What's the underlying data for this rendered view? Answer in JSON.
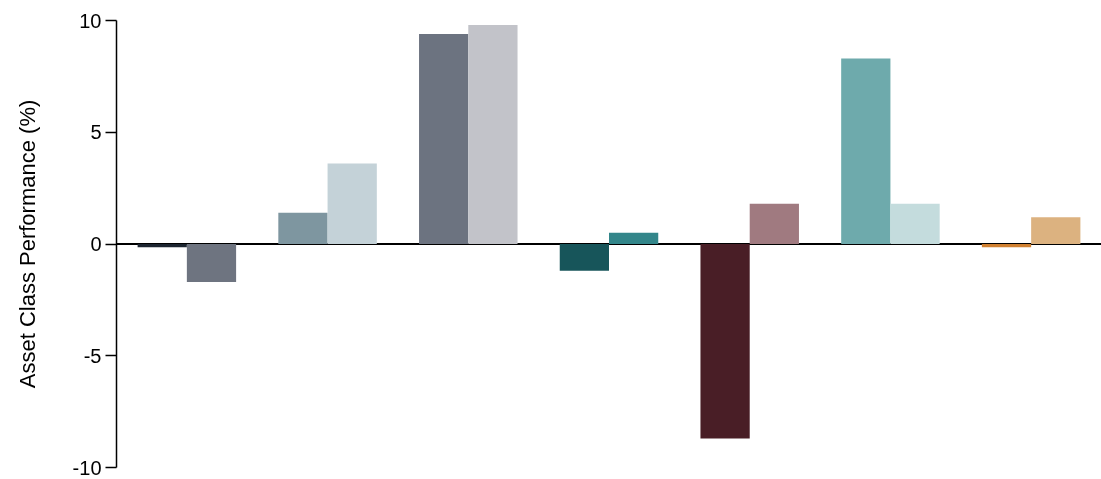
{
  "chart_data": {
    "type": "bar",
    "ylabel": "Asset Class Performance (%)",
    "categories": [
      null,
      null,
      null,
      null,
      null,
      null,
      null
    ],
    "series": [
      {
        "colors": [
          "#1c2530",
          "#7e96a0",
          "#6c7380",
          "#17555a",
          "#491e26",
          "#6eaaac",
          "#d08030"
        ],
        "values": [
          -0.15,
          1.4,
          9.4,
          -1.2,
          -8.7,
          8.3,
          -0.15
        ]
      },
      {
        "colors": [
          "#6e7480",
          "#c4d2d8",
          "#c2c3c9",
          "#33868a",
          "#a07a80",
          "#c4dcdd",
          "#dcb280"
        ],
        "values": [
          -1.7,
          3.6,
          9.8,
          0.5,
          1.8,
          1.8,
          1.2
        ]
      }
    ],
    "ylim": [
      -10,
      10
    ],
    "yticks": [
      -10,
      -5,
      0,
      5,
      10
    ],
    "ref_lines": [
      {
        "axis": "y",
        "value": 0,
        "color": "#000000"
      }
    ]
  }
}
